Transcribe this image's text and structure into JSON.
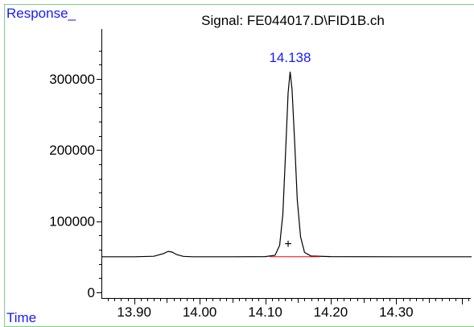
{
  "chart_data": {
    "type": "line",
    "title": "Signal: FE044017.D\\FID1B.ch",
    "ylabel": "Response_",
    "xlabel": "Time",
    "xlim": [
      13.85,
      14.415
    ],
    "ylim": [
      -8000,
      370000
    ],
    "y_ticks": [
      0,
      100000,
      200000,
      300000
    ],
    "y_tick_labels": [
      "0",
      "100000",
      "200000",
      "300000"
    ],
    "x_ticks": [
      13.9,
      14.0,
      14.1,
      14.2,
      14.3
    ],
    "x_tick_labels": [
      "13.90",
      "14.00",
      "14.10",
      "14.20",
      "14.30"
    ],
    "series": [
      {
        "x": [
          13.85,
          13.9,
          13.93,
          13.945,
          13.952,
          13.958,
          13.965,
          13.975,
          13.99,
          14.05,
          14.1,
          14.115,
          14.122,
          14.127,
          14.131,
          14.135,
          14.138,
          14.141,
          14.145,
          14.149,
          14.154,
          14.16,
          14.17,
          14.2,
          14.3,
          14.415
        ],
        "y": [
          50000,
          50000,
          50600,
          54500,
          57500,
          56500,
          53000,
          50500,
          50000,
          50000,
          50200,
          52000,
          66000,
          110000,
          195000,
          280000,
          310000,
          285000,
          210000,
          130000,
          78000,
          56000,
          51000,
          50200,
          50000,
          50000
        ]
      }
    ],
    "baseline": {
      "x": [
        14.107,
        14.184
      ],
      "y": [
        50000,
        50000
      ]
    },
    "peak_label": {
      "x": 14.138,
      "y": 310000,
      "text": "14.138"
    },
    "integration_marker": {
      "x": 14.135,
      "y": 62000,
      "text": "+"
    },
    "grid": false,
    "colors": {
      "frame": "#7fd17f",
      "labels_blue": "#1a1aff",
      "baseline": "#ff0000"
    }
  }
}
